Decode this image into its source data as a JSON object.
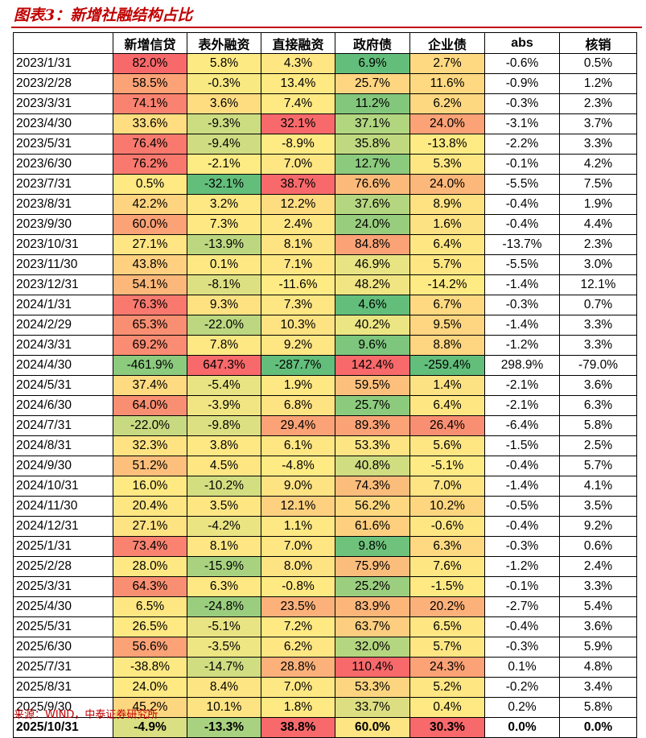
{
  "title": "图表3：新增社融结构占比",
  "source": "来源：WIND，中泰证券研究所",
  "colors": {
    "accent": "#c00000"
  },
  "table": {
    "columns": [
      "",
      "新增信贷",
      "表外融资",
      "直接融资",
      "政府债",
      "企业债",
      "abs",
      "核销"
    ],
    "rows": [
      {
        "date": "2023/1/31",
        "values": [
          "82.0%",
          "5.8%",
          "4.3%",
          "6.9%",
          "2.7%",
          "-0.6%",
          "0.5%"
        ],
        "colors": [
          "#f8696b",
          "#feea83",
          "#fee683",
          "#63be7b",
          "#fed981",
          "",
          ""
        ]
      },
      {
        "date": "2023/2/28",
        "values": [
          "58.5%",
          "-0.3%",
          "13.4%",
          "25.7%",
          "11.6%",
          "-0.9%",
          "1.2%"
        ],
        "colors": [
          "#fba276",
          "#f9e983",
          "#fee983",
          "#fed580",
          "#fed981",
          "",
          ""
        ]
      },
      {
        "date": "2023/3/31",
        "values": [
          "74.1%",
          "3.6%",
          "7.4%",
          "11.2%",
          "6.2%",
          "-0.3%",
          "2.3%"
        ],
        "colors": [
          "#f98370",
          "#fedd81",
          "#fee983",
          "#83c77d",
          "#fed781",
          "",
          ""
        ]
      },
      {
        "date": "2023/4/30",
        "values": [
          "33.6%",
          "-9.3%",
          "32.1%",
          "37.1%",
          "24.0%",
          "-3.1%",
          "3.7%"
        ],
        "colors": [
          "#ffdd81",
          "#cbdc81",
          "#f8696b",
          "#b2d580",
          "#fba276",
          "",
          ""
        ]
      },
      {
        "date": "2023/5/31",
        "values": [
          "76.4%",
          "-9.4%",
          "-8.9%",
          "35.8%",
          "-13.8%",
          "-2.2%",
          "3.3%"
        ],
        "colors": [
          "#f9796e",
          "#cfdc81",
          "#ffeb84",
          "#c0d980",
          "#ffeb84",
          "",
          ""
        ]
      },
      {
        "date": "2023/6/30",
        "values": [
          "76.2%",
          "-2.1%",
          "7.0%",
          "12.7%",
          "5.3%",
          "-0.1%",
          "4.2%"
        ],
        "colors": [
          "#f9796e",
          "#fdeb84",
          "#fee683",
          "#8cca7e",
          "#fee783",
          "",
          ""
        ]
      },
      {
        "date": "2023/7/31",
        "values": [
          "0.5%",
          "-32.1%",
          "38.7%",
          "76.6%",
          "24.0%",
          "-5.5%",
          "7.5%"
        ],
        "colors": [
          "#fee983",
          "#63be7b",
          "#f8696b",
          "#fcba7a",
          "#fcb87a",
          "",
          ""
        ]
      },
      {
        "date": "2023/8/31",
        "values": [
          "42.2%",
          "3.2%",
          "12.2%",
          "37.6%",
          "8.9%",
          "-0.4%",
          "1.9%"
        ],
        "colors": [
          "#fed480",
          "#fee883",
          "#fedd81",
          "#b5d680",
          "#fee282",
          "",
          ""
        ]
      },
      {
        "date": "2023/9/30",
        "values": [
          "60.0%",
          "7.3%",
          "2.4%",
          "24.0%",
          "1.6%",
          "-0.4%",
          "4.4%"
        ],
        "colors": [
          "#fba276",
          "#fee883",
          "#fee783",
          "#98cd7e",
          "#fde283",
          "",
          ""
        ]
      },
      {
        "date": "2023/10/31",
        "values": [
          "27.1%",
          "-13.9%",
          "8.1%",
          "84.8%",
          "6.4%",
          "-13.7%",
          "2.3%"
        ],
        "colors": [
          "#ffe583",
          "#bcd780",
          "#fee382",
          "#fba276",
          "#fee783",
          "",
          ""
        ]
      },
      {
        "date": "2023/11/30",
        "values": [
          "43.8%",
          "0.1%",
          "7.1%",
          "46.9%",
          "5.7%",
          "-5.5%",
          "3.0%"
        ],
        "colors": [
          "#fed080",
          "#fde883",
          "#fee783",
          "#e8e483",
          "#fee683",
          "",
          ""
        ]
      },
      {
        "date": "2023/12/31",
        "values": [
          "54.1%",
          "-8.1%",
          "-11.6%",
          "48.2%",
          "-14.2%",
          "-1.4%",
          "12.1%"
        ],
        "colors": [
          "#fcb87a",
          "#dde082",
          "#ffeb84",
          "#f1e583",
          "#ffeb84",
          "",
          ""
        ]
      },
      {
        "date": "2024/1/31",
        "values": [
          "76.3%",
          "9.3%",
          "7.3%",
          "4.6%",
          "6.7%",
          "-0.3%",
          "0.7%"
        ],
        "colors": [
          "#f9796e",
          "#fee282",
          "#fee683",
          "#63be7b",
          "#fed981",
          "",
          ""
        ]
      },
      {
        "date": "2024/2/29",
        "values": [
          "65.3%",
          "-22.0%",
          "10.3%",
          "40.2%",
          "9.5%",
          "-1.4%",
          "3.3%"
        ],
        "colors": [
          "#f98f72",
          "#bcd780",
          "#fee382",
          "#ecE583",
          "#fed580",
          "",
          ""
        ]
      },
      {
        "date": "2024/3/31",
        "values": [
          "69.2%",
          "7.8%",
          "9.2%",
          "9.6%",
          "8.8%",
          "-1.2%",
          "3.3%"
        ],
        "colors": [
          "#f98c72",
          "#fee883",
          "#fee683",
          "#7ec57d",
          "#fed580",
          "",
          ""
        ]
      },
      {
        "date": "2024/4/30",
        "values": [
          "-461.9%",
          "647.3%",
          "-287.7%",
          "142.4%",
          "-259.4%",
          "298.9%",
          "-79.0%"
        ],
        "colors": [
          "#8ccb7e",
          "#f8696b",
          "#63be7b",
          "#f8696b",
          "#63be7b",
          "",
          ""
        ]
      },
      {
        "date": "2024/5/31",
        "values": [
          "37.4%",
          "-5.4%",
          "1.9%",
          "59.5%",
          "1.4%",
          "-2.1%",
          "3.6%"
        ],
        "colors": [
          "#fedb81",
          "#e8e483",
          "#fee883",
          "#fdc07c",
          "#fde283",
          "",
          ""
        ]
      },
      {
        "date": "2024/6/30",
        "values": [
          "64.0%",
          "-3.9%",
          "6.8%",
          "25.7%",
          "6.4%",
          "-2.1%",
          "6.3%"
        ],
        "colors": [
          "#f98f72",
          "#f1e583",
          "#fee383",
          "#8ccb7e",
          "#fee783",
          "",
          ""
        ]
      },
      {
        "date": "2024/7/31",
        "values": [
          "-22.0%",
          "-9.8%",
          "29.4%",
          "89.3%",
          "26.4%",
          "-6.4%",
          "5.8%"
        ],
        "colors": [
          "#c7da81",
          "#dde082",
          "#fba276",
          "#fba276",
          "#f98f72",
          "",
          ""
        ]
      },
      {
        "date": "2024/8/31",
        "values": [
          "32.3%",
          "3.8%",
          "6.1%",
          "53.3%",
          "5.6%",
          "-1.5%",
          "2.5%"
        ],
        "colors": [
          "#ffe383",
          "#fee883",
          "#fee683",
          "#fde583",
          "#fee683",
          "",
          ""
        ]
      },
      {
        "date": "2024/9/30",
        "values": [
          "51.2%",
          "4.5%",
          "-4.8%",
          "40.8%",
          "-5.1%",
          "-0.4%",
          "5.7%"
        ],
        "colors": [
          "#fdc07c",
          "#fee683",
          "#ffeb84",
          "#d0dd81",
          "#ffeb84",
          "",
          ""
        ]
      },
      {
        "date": "2024/10/31",
        "values": [
          "16.0%",
          "-10.2%",
          "9.0%",
          "74.3%",
          "7.0%",
          "-1.4%",
          "4.1%"
        ],
        "colors": [
          "#fee983",
          "#d3de81",
          "#fee383",
          "#fbbd7b",
          "#fee483",
          "",
          ""
        ]
      },
      {
        "date": "2024/11/30",
        "values": [
          "20.4%",
          "3.5%",
          "12.1%",
          "56.2%",
          "10.2%",
          "-0.5%",
          "3.5%"
        ],
        "colors": [
          "#fee683",
          "#fee683",
          "#fdd17f",
          "#fed880",
          "#fdd67f",
          "",
          ""
        ]
      },
      {
        "date": "2024/12/31",
        "values": [
          "27.1%",
          "-4.2%",
          "1.1%",
          "61.6%",
          "-0.6%",
          "-0.4%",
          "9.2%"
        ],
        "colors": [
          "#fee383",
          "#eae483",
          "#fde883",
          "#fdcf7f",
          "#fee783",
          "",
          ""
        ]
      },
      {
        "date": "2025/1/31",
        "values": [
          "73.4%",
          "8.1%",
          "7.0%",
          "9.8%",
          "6.3%",
          "-0.3%",
          "0.6%"
        ],
        "colors": [
          "#f98370",
          "#fde683",
          "#fee683",
          "#6fc27c",
          "#fed981",
          "",
          ""
        ]
      },
      {
        "date": "2025/2/28",
        "values": [
          "28.0%",
          "-15.9%",
          "8.0%",
          "75.9%",
          "7.6%",
          "-1.2%",
          "2.4%"
        ],
        "colors": [
          "#fde883",
          "#a8d27f",
          "#fee383",
          "#fbbd7b",
          "#fee783",
          "",
          ""
        ]
      },
      {
        "date": "2025/3/31",
        "values": [
          "64.3%",
          "6.3%",
          "-0.8%",
          "25.2%",
          "-1.5%",
          "-0.1%",
          "3.3%"
        ],
        "colors": [
          "#f98f72",
          "#fee883",
          "#fee983",
          "#9bce7f",
          "#fee983",
          "",
          ""
        ]
      },
      {
        "date": "2025/4/30",
        "values": [
          "6.5%",
          "-24.8%",
          "23.5%",
          "83.9%",
          "20.2%",
          "-2.7%",
          "5.4%"
        ],
        "colors": [
          "#fee783",
          "#9acd7e",
          "#fcb17a",
          "#fcb67a",
          "#fcb17a",
          "",
          ""
        ]
      },
      {
        "date": "2025/5/31",
        "values": [
          "26.5%",
          "-5.1%",
          "7.2%",
          "63.7%",
          "6.5%",
          "-0.4%",
          "3.6%"
        ],
        "colors": [
          "#fee983",
          "#e9e483",
          "#fee983",
          "#fdce7f",
          "#fee683",
          "",
          ""
        ]
      },
      {
        "date": "2025/6/30",
        "values": [
          "56.6%",
          "-3.5%",
          "6.2%",
          "32.0%",
          "5.7%",
          "-0.3%",
          "5.9%"
        ],
        "colors": [
          "#fba276",
          "#eee583",
          "#fee783",
          "#b5d680",
          "#fee783",
          "",
          ""
        ]
      },
      {
        "date": "2025/7/31",
        "values": [
          "-38.8%",
          "-14.7%",
          "28.8%",
          "110.4%",
          "24.3%",
          "0.1%",
          "4.8%"
        ],
        "colors": [
          "#fde983",
          "#d0dd81",
          "#fcb17a",
          "#f8696b",
          "#fba276",
          "",
          ""
        ]
      },
      {
        "date": "2025/8/31",
        "values": [
          "24.0%",
          "8.4%",
          "7.0%",
          "53.3%",
          "5.2%",
          "-0.2%",
          "3.4%"
        ],
        "colors": [
          "#fee983",
          "#fee583",
          "#fee883",
          "#fdd580",
          "#fee683",
          "",
          ""
        ]
      },
      {
        "date": "2025/9/30",
        "values": [
          "45.2%",
          "10.1%",
          "1.8%",
          "33.7%",
          "0.4%",
          "0.2%",
          "5.8%"
        ],
        "colors": [
          "#fdd680",
          "#fee383",
          "#fee983",
          "#ddde82",
          "#fee983",
          "",
          ""
        ]
      },
      {
        "date": "2025/10/31",
        "values": [
          "-4.9%",
          "-13.3%",
          "38.8%",
          "60.0%",
          "30.3%",
          "0.0%",
          "0.0%"
        ],
        "colors": [
          "#d9df82",
          "#a8d27f",
          "#f8696b",
          "#fde583",
          "#f8696b",
          "",
          ""
        ],
        "bold": true
      }
    ]
  }
}
